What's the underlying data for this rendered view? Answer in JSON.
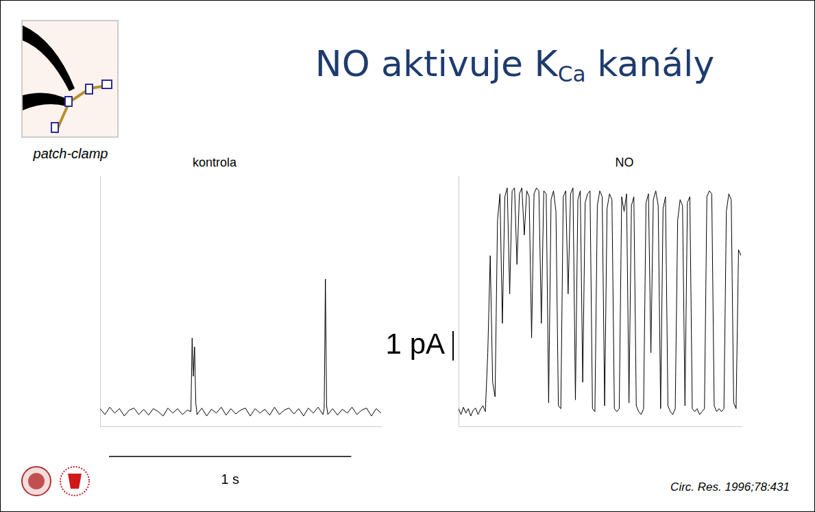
{
  "slide": {
    "title": "NO aktivuje KCa kanály",
    "title_subscript": "Ca",
    "icon_caption": "patch-clamp",
    "citation": "Circ. Res. 1996;78:431"
  },
  "chart_data": [
    {
      "type": "line",
      "title": "kontrola",
      "color": "#000000",
      "grid": false,
      "tick_labels": false,
      "xlim": [
        0,
        1.16
      ],
      "ylim": [
        -0.5,
        8
      ],
      "x": [
        0,
        0.02,
        0.04,
        0.06,
        0.08,
        0.1,
        0.12,
        0.14,
        0.16,
        0.18,
        0.2,
        0.22,
        0.24,
        0.26,
        0.28,
        0.3,
        0.32,
        0.34,
        0.36,
        0.375,
        0.38,
        0.385,
        0.39,
        0.395,
        0.4,
        0.42,
        0.44,
        0.46,
        0.48,
        0.5,
        0.52,
        0.54,
        0.56,
        0.58,
        0.6,
        0.62,
        0.64,
        0.66,
        0.68,
        0.7,
        0.72,
        0.74,
        0.76,
        0.78,
        0.8,
        0.82,
        0.84,
        0.86,
        0.88,
        0.9,
        0.92,
        0.925,
        0.93,
        0.935,
        0.94,
        0.96,
        0.98,
        1.0,
        1.02,
        1.04,
        1.06,
        1.08,
        1.1,
        1.12,
        1.14,
        1.16
      ],
      "values": [
        0.1,
        -0.1,
        0.15,
        -0.05,
        0.1,
        -0.15,
        0.05,
        0.12,
        -0.1,
        0.08,
        -0.12,
        0.1,
        0.0,
        -0.15,
        0.12,
        -0.05,
        0.1,
        -0.1,
        0.05,
        0.0,
        2.5,
        1.2,
        2.2,
        0.3,
        -0.1,
        0.12,
        -0.15,
        0.08,
        -0.05,
        0.15,
        -0.12,
        0.1,
        -0.08,
        0.05,
        0.12,
        -0.15,
        0.1,
        -0.05,
        0.08,
        -0.12,
        0.15,
        -0.1,
        0.05,
        0.12,
        -0.08,
        0.1,
        -0.15,
        0.12,
        -0.05,
        0.15,
        -0.1,
        0.1,
        4.5,
        0.2,
        -0.1,
        0.1,
        -0.12,
        0.08,
        -0.05,
        0.15,
        -0.1,
        0.05,
        0.12,
        -0.15,
        0.1,
        -0.05
      ]
    },
    {
      "type": "line",
      "title": "NO",
      "color": "#000000",
      "grid": false,
      "tick_labels": false,
      "xlim": [
        0,
        1.16
      ],
      "ylim": [
        -0.5,
        8
      ],
      "x": [
        0,
        0.01,
        0.02,
        0.03,
        0.04,
        0.05,
        0.06,
        0.07,
        0.08,
        0.09,
        0.1,
        0.11,
        0.12,
        0.13,
        0.14,
        0.15,
        0.16,
        0.17,
        0.18,
        0.19,
        0.2,
        0.21,
        0.22,
        0.23,
        0.24,
        0.25,
        0.26,
        0.27,
        0.28,
        0.29,
        0.3,
        0.31,
        0.32,
        0.33,
        0.34,
        0.35,
        0.36,
        0.37,
        0.38,
        0.39,
        0.4,
        0.41,
        0.42,
        0.43,
        0.44,
        0.45,
        0.46,
        0.47,
        0.48,
        0.49,
        0.5,
        0.51,
        0.52,
        0.53,
        0.54,
        0.55,
        0.56,
        0.57,
        0.58,
        0.59,
        0.6,
        0.61,
        0.62,
        0.63,
        0.64,
        0.65,
        0.66,
        0.67,
        0.68,
        0.69,
        0.7,
        0.71,
        0.72,
        0.73,
        0.74,
        0.75,
        0.76,
        0.77,
        0.78,
        0.79,
        0.8,
        0.81,
        0.82,
        0.83,
        0.84,
        0.85,
        0.86,
        0.87,
        0.88,
        0.89,
        0.9,
        0.91,
        0.92,
        0.93,
        0.94,
        0.95,
        0.96,
        0.97,
        0.98,
        0.99,
        1.0,
        1.01,
        1.02,
        1.03,
        1.04,
        1.05,
        1.06,
        1.07,
        1.08,
        1.09,
        1.1,
        1.11,
        1.12,
        1.13,
        1.14,
        1.15,
        1.16
      ],
      "values": [
        0.1,
        -0.1,
        0.15,
        -0.05,
        0.1,
        -0.15,
        0.05,
        0.12,
        -0.1,
        0.08,
        0.2,
        0.0,
        2,
        5.3,
        1.0,
        0.5,
        6.5,
        7.4,
        3,
        7.3,
        7.6,
        4,
        7.5,
        7.6,
        5,
        7.4,
        7.6,
        6,
        7.5,
        7.3,
        2.5,
        7.4,
        7.6,
        7.5,
        3,
        7.5,
        7.4,
        0.3,
        7.2,
        7.5,
        6.8,
        0.2,
        0.1,
        7.3,
        7.5,
        4,
        7.4,
        7.6,
        0.4,
        7.2,
        7.5,
        1,
        7.1,
        7.4,
        7.5,
        0.1,
        0.0,
        7.0,
        7.5,
        7.3,
        0.2,
        6.9,
        7.4,
        7.2,
        0.1,
        0.0,
        0.1,
        7.3,
        6.8,
        7.4,
        0.3,
        7.0,
        7.3,
        0.2,
        0.0,
        -0.1,
        0.1,
        7.1,
        7.4,
        2,
        7.2,
        7.5,
        7.0,
        0.1,
        6.9,
        7.3,
        0.2,
        0.0,
        -0.1,
        0.1,
        6.5,
        7.2,
        7.0,
        0.2,
        7.1,
        7.3,
        0.1,
        0.0,
        0.1,
        -0.1,
        0.0,
        0.1,
        7.3,
        7.5,
        7.4,
        0.2,
        0.0,
        0.1,
        0.0,
        0.1,
        6.8,
        7.4,
        7.2,
        0.3,
        0.1,
        5.5,
        5.3
      ]
    }
  ],
  "scale_bars": [
    {
      "axis": "y",
      "value": 1,
      "label": "1 pA"
    },
    {
      "axis": "x",
      "value": 1,
      "label": "1 s"
    }
  ]
}
